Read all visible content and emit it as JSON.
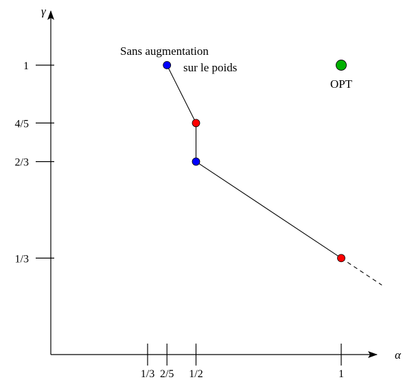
{
  "chart_data": {
    "type": "line",
    "xlabel": "α",
    "ylabel": "γ",
    "xlim": [
      0,
      1.3
    ],
    "ylim": [
      0,
      1.2
    ],
    "x_ticks": [
      {
        "value": 0.3333,
        "label": "1/3"
      },
      {
        "value": 0.4,
        "label": "2/5"
      },
      {
        "value": 0.5,
        "label": "1/2"
      },
      {
        "value": 1.0,
        "label": "1"
      }
    ],
    "y_ticks": [
      {
        "value": 0.3333,
        "label": "1/3"
      },
      {
        "value": 0.6667,
        "label": "2/3"
      },
      {
        "value": 0.8,
        "label": "4/5"
      },
      {
        "value": 1.0,
        "label": "1"
      }
    ],
    "series": [
      {
        "points": [
          {
            "x": 0.4,
            "y": 1.0,
            "color": "#0000ff"
          },
          {
            "x": 0.5,
            "y": 0.8,
            "color": "#ff0000"
          },
          {
            "x": 0.5,
            "y": 0.6667,
            "color": "#0000ff"
          },
          {
            "x": 1.0,
            "y": 0.3333,
            "color": "#ff0000"
          }
        ],
        "line_color": "#000000",
        "extension": {
          "x": 1.14,
          "y": 0.24,
          "style": "dashed"
        }
      }
    ],
    "extra_points": [
      {
        "x": 1.0,
        "y": 1.0,
        "color": "#00b000",
        "label": "OPT"
      }
    ],
    "annotations": [
      {
        "text": "Sans augmentation",
        "x": 0.4,
        "y": 1.0
      },
      {
        "text": "sur le poids",
        "x": 0.4,
        "y": 1.0
      }
    ],
    "grid": false,
    "legend": "none"
  }
}
